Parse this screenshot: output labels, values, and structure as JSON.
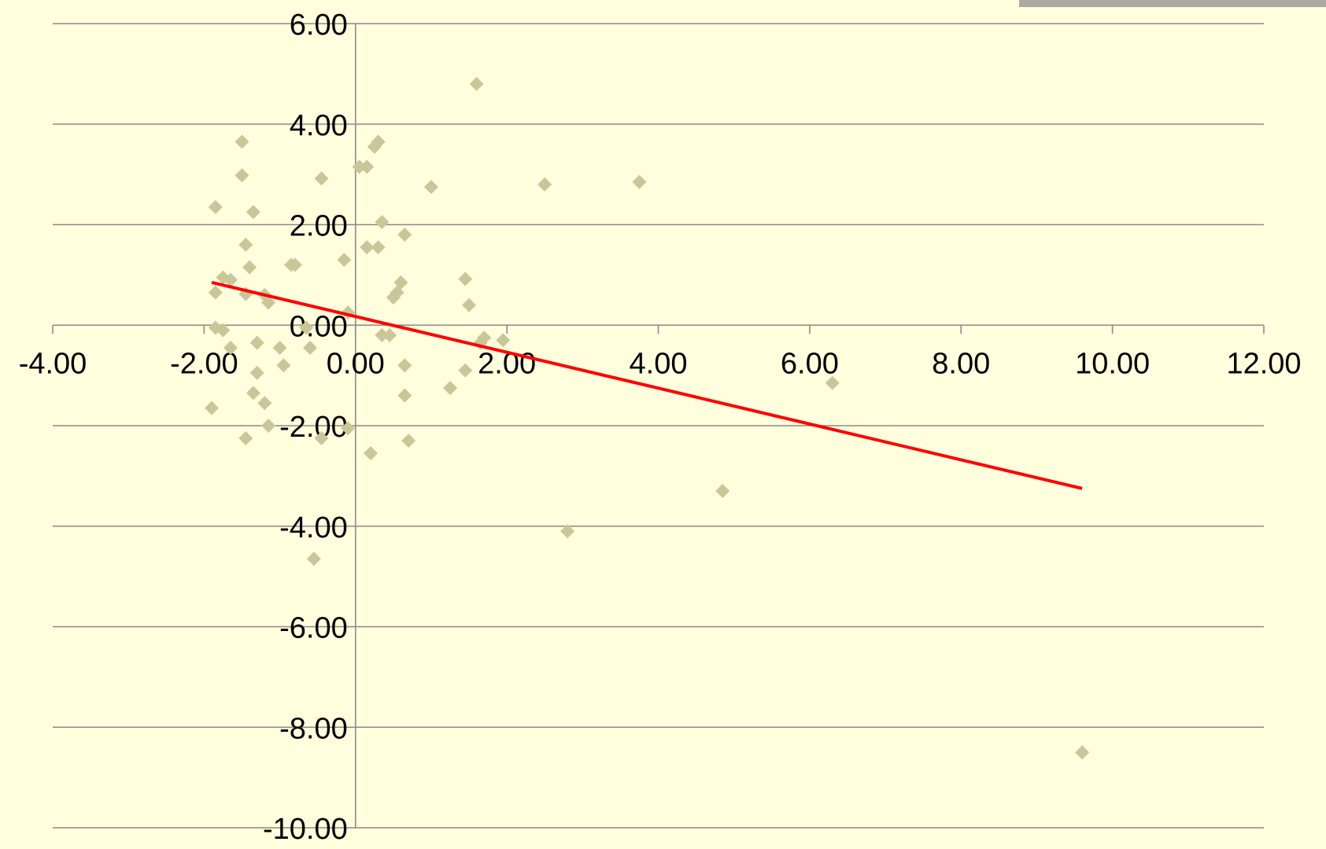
{
  "chart_data": {
    "type": "scatter",
    "title": "",
    "xlabel": "",
    "ylabel": "",
    "xlim": [
      -4,
      12
    ],
    "ylim": [
      -10,
      6
    ],
    "xticks": [
      -4,
      -2,
      0,
      2,
      4,
      6,
      8,
      10,
      12
    ],
    "yticks": [
      6,
      4,
      2,
      0,
      -2,
      -4,
      -6,
      -8,
      -10
    ],
    "x_tick_labels": [
      "-4.00",
      "-2.00",
      "0.00",
      "2.00",
      "4.00",
      "6.00",
      "8.00",
      "10.00",
      "12.00"
    ],
    "y_tick_labels": [
      "6.00",
      "4.00",
      "2.00",
      "0.00",
      "-2.00",
      "-4.00",
      "-6.00",
      "-8.00",
      "-10.00"
    ],
    "grid": "horizontal",
    "series": [
      {
        "marker": "diamond",
        "color": "#C9C79A",
        "points": [
          [
            1.6,
            4.8
          ],
          [
            -1.5,
            3.65
          ],
          [
            0.3,
            3.65
          ],
          [
            0.25,
            3.55
          ],
          [
            0.05,
            3.15
          ],
          [
            0.15,
            3.15
          ],
          [
            -1.5,
            2.98
          ],
          [
            -0.45,
            2.92
          ],
          [
            3.75,
            2.85
          ],
          [
            2.5,
            2.8
          ],
          [
            1.0,
            2.75
          ],
          [
            -1.85,
            2.35
          ],
          [
            -1.35,
            2.25
          ],
          [
            0.35,
            2.05
          ],
          [
            0.65,
            1.8
          ],
          [
            -1.45,
            1.6
          ],
          [
            0.15,
            1.55
          ],
          [
            0.3,
            1.55
          ],
          [
            -0.15,
            1.3
          ],
          [
            -0.8,
            1.2
          ],
          [
            -0.85,
            1.2
          ],
          [
            -1.4,
            1.15
          ],
          [
            -1.75,
            0.95
          ],
          [
            -1.65,
            0.9
          ],
          [
            1.45,
            0.92
          ],
          [
            0.6,
            0.85
          ],
          [
            -1.85,
            0.65
          ],
          [
            -1.45,
            0.62
          ],
          [
            -1.2,
            0.6
          ],
          [
            0.55,
            0.65
          ],
          [
            0.5,
            0.55
          ],
          [
            -1.15,
            0.45
          ],
          [
            1.5,
            0.4
          ],
          [
            -0.1,
            0.25
          ],
          [
            -1.85,
            -0.05
          ],
          [
            -1.75,
            -0.1
          ],
          [
            -0.65,
            -0.05
          ],
          [
            0.35,
            -0.2
          ],
          [
            0.45,
            -0.2
          ],
          [
            1.7,
            -0.25
          ],
          [
            1.95,
            -0.3
          ],
          [
            1.65,
            -0.35
          ],
          [
            -1.3,
            -0.35
          ],
          [
            -1.65,
            -0.45
          ],
          [
            -1.0,
            -0.45
          ],
          [
            -0.6,
            -0.45
          ],
          [
            -0.95,
            -0.8
          ],
          [
            0.65,
            -0.8
          ],
          [
            -1.3,
            -0.95
          ],
          [
            1.45,
            -0.9
          ],
          [
            1.25,
            -1.25
          ],
          [
            -1.35,
            -1.35
          ],
          [
            0.65,
            -1.4
          ],
          [
            6.3,
            -1.15
          ],
          [
            -1.2,
            -1.55
          ],
          [
            -1.9,
            -1.65
          ],
          [
            -1.15,
            -2.0
          ],
          [
            -0.1,
            -2.05
          ],
          [
            -1.45,
            -2.25
          ],
          [
            -0.45,
            -2.25
          ],
          [
            0.7,
            -2.3
          ],
          [
            0.2,
            -2.55
          ],
          [
            4.85,
            -3.3
          ],
          [
            2.8,
            -4.1
          ],
          [
            -0.55,
            -4.65
          ],
          [
            9.6,
            -8.5
          ]
        ]
      }
    ],
    "trendline": {
      "color": "#FF0000",
      "points": [
        [
          -1.9,
          0.85
        ],
        [
          9.6,
          -3.25
        ]
      ]
    }
  }
}
